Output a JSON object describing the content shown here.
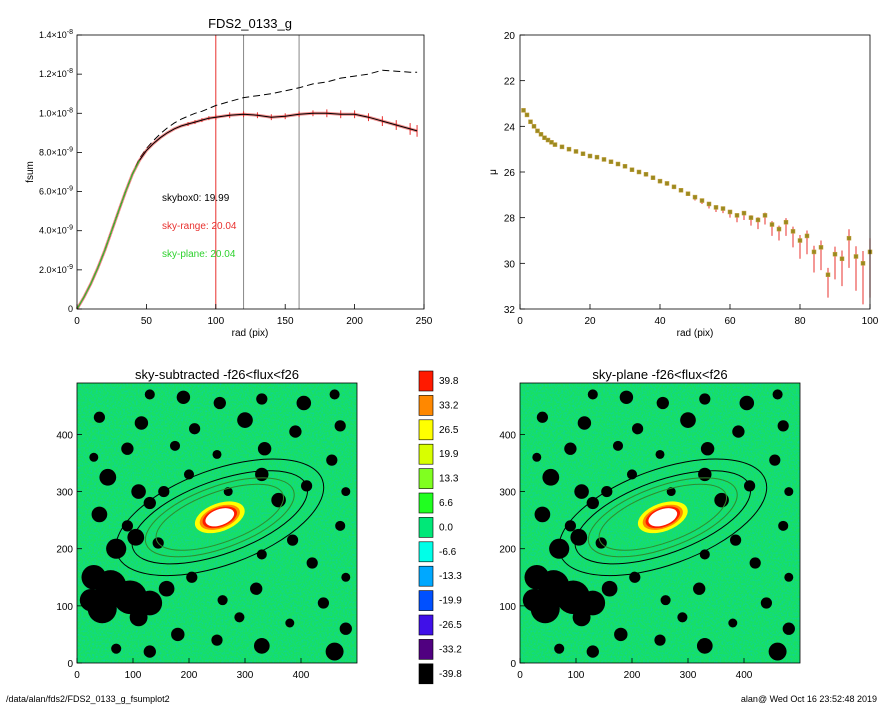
{
  "chart_data": [
    {
      "type": "line",
      "title": "FDS2_0133_g",
      "xlabel": "rad (pix)",
      "ylabel": "fsum",
      "xlim": [
        0,
        250
      ],
      "ylim": [
        0,
        1.4e-08
      ],
      "x_ticks": [
        "0",
        "50",
        "100",
        "150",
        "200",
        "250"
      ],
      "y_ticks": [
        {
          "mantissa": "0",
          "exp": ""
        },
        {
          "mantissa": "2.0×10",
          "exp": "-9"
        },
        {
          "mantissa": "4.0×10",
          "exp": "-9"
        },
        {
          "mantissa": "6.0×10",
          "exp": "-9"
        },
        {
          "mantissa": "8.0×10",
          "exp": "-9"
        },
        {
          "mantissa": "1.0×10",
          "exp": "-8"
        },
        {
          "mantissa": "1.2×10",
          "exp": "-8"
        },
        {
          "mantissa": "1.4×10",
          "exp": "-8"
        }
      ],
      "vertical_lines": [
        {
          "x": 100,
          "color": "#e8302e"
        },
        {
          "x": 120,
          "color": "#888888"
        },
        {
          "x": 160,
          "color": "#888888"
        }
      ],
      "annotations": [
        {
          "text": "skybox0: 19.99",
          "color": "#000000"
        },
        {
          "text": "sky-range: 20.04",
          "color": "#e8302e"
        },
        {
          "text": "sky-plane: 20.04",
          "color": "#2ed12e"
        }
      ],
      "series": [
        {
          "style": "dashed",
          "color": "#000000",
          "x": [
            0,
            5,
            10,
            15,
            20,
            25,
            30,
            35,
            40,
            45,
            50,
            55,
            60,
            65,
            70,
            75,
            80,
            85,
            90,
            95,
            100,
            110,
            120,
            130,
            140,
            150,
            160,
            170,
            180,
            190,
            200,
            210,
            220,
            230,
            240,
            245
          ],
          "y": [
            0,
            6e-10,
            1.3e-09,
            2.1e-09,
            3e-09,
            4e-09,
            5e-09,
            6e-09,
            6.9e-09,
            7.7e-09,
            8.2e-09,
            8.6e-09,
            8.95e-09,
            9.25e-09,
            9.5e-09,
            9.7e-09,
            9.85e-09,
            1e-08,
            1.01e-08,
            1.025e-08,
            1.04e-08,
            1.06e-08,
            1.08e-08,
            1.09e-08,
            1.1e-08,
            1.115e-08,
            1.13e-08,
            1.15e-08,
            1.16e-08,
            1.18e-08,
            1.19e-08,
            1.2e-08,
            1.22e-08,
            1.215e-08,
            1.21e-08,
            1.21e-08
          ]
        },
        {
          "style": "errorbars",
          "color": "#e8302e",
          "x": [
            0,
            5,
            10,
            15,
            20,
            25,
            30,
            35,
            40,
            45,
            50,
            55,
            60,
            65,
            70,
            75,
            80,
            85,
            90,
            95,
            100,
            110,
            120,
            130,
            140,
            150,
            160,
            170,
            180,
            190,
            200,
            210,
            220,
            230,
            240,
            245
          ],
          "y": [
            0,
            6e-10,
            1.3e-09,
            2.1e-09,
            3e-09,
            4e-09,
            5e-09,
            6e-09,
            6.9e-09,
            7.6e-09,
            8.1e-09,
            8.45e-09,
            8.75e-09,
            9e-09,
            9.2e-09,
            9.35e-09,
            9.45e-09,
            9.55e-09,
            9.65e-09,
            9.75e-09,
            9.8e-09,
            9.9e-09,
            9.95e-09,
            9.9e-09,
            9.8e-09,
            9.85e-09,
            9.95e-09,
            1e-08,
            1e-08,
            9.95e-09,
            9.95e-09,
            9.8e-09,
            9.6e-09,
            9.4e-09,
            9.2e-09,
            9.1e-09
          ],
          "err": [
            0,
            0,
            0,
            0,
            0,
            0,
            0,
            0,
            0,
            0,
            0,
            0,
            0,
            0,
            0,
            0,
            1e-10,
            1e-10,
            1e-10,
            1e-10,
            1.5e-10,
            1.5e-10,
            1.5e-10,
            1.5e-10,
            1.5e-10,
            1.5e-10,
            1.5e-10,
            1.5e-10,
            2e-10,
            2e-10,
            2e-10,
            2e-10,
            2.5e-10,
            2.5e-10,
            3e-10,
            3e-10
          ]
        },
        {
          "style": "solid",
          "color": "#000000",
          "x": [
            0,
            5,
            10,
            15,
            20,
            25,
            30,
            35,
            40,
            45,
            50,
            55,
            60,
            65,
            70,
            75,
            80,
            85,
            90,
            95,
            100,
            110,
            120,
            130,
            140,
            150,
            160,
            170,
            180,
            190,
            200,
            210,
            220,
            230,
            240,
            245
          ],
          "y": [
            0,
            6e-10,
            1.3e-09,
            2.1e-09,
            3e-09,
            4e-09,
            5e-09,
            6e-09,
            6.9e-09,
            7.6e-09,
            8.1e-09,
            8.45e-09,
            8.75e-09,
            9e-09,
            9.2e-09,
            9.35e-09,
            9.45e-09,
            9.55e-09,
            9.65e-09,
            9.75e-09,
            9.8e-09,
            9.9e-09,
            9.95e-09,
            9.9e-09,
            9.8e-09,
            9.85e-09,
            9.95e-09,
            1e-08,
            1e-08,
            9.95e-09,
            9.95e-09,
            9.8e-09,
            9.6e-09,
            9.4e-09,
            9.2e-09,
            9.1e-09
          ]
        },
        {
          "style": "solid",
          "color": "#2ed12e",
          "x": [
            0,
            5,
            10,
            15,
            20,
            25,
            30,
            35,
            40,
            45
          ],
          "y": [
            0,
            6e-10,
            1.3e-09,
            2.1e-09,
            3e-09,
            4e-09,
            5e-09,
            6e-09,
            6.9e-09,
            7.6e-09
          ]
        }
      ]
    },
    {
      "type": "scatter",
      "title": "",
      "xlabel": "rad (pix)",
      "ylabel": "μ",
      "xlim": [
        0,
        100
      ],
      "ylim": [
        32,
        20
      ],
      "y_inverted": true,
      "x_ticks": [
        "0",
        "20",
        "40",
        "60",
        "80",
        "100"
      ],
      "y_ticks": [
        "20",
        "22",
        "24",
        "26",
        "28",
        "30",
        "32"
      ],
      "series": [
        {
          "marker": "square",
          "color": "#c8a040",
          "x": [
            1,
            2,
            3,
            4,
            5,
            6,
            7,
            8,
            9,
            10,
            12,
            14,
            16,
            18,
            20,
            22,
            24,
            26,
            28,
            30,
            32,
            34,
            36,
            38,
            40,
            42,
            44,
            46,
            48,
            50,
            52,
            54,
            56,
            58,
            60,
            62,
            64,
            66,
            68,
            70,
            72,
            74,
            76,
            78,
            80,
            82,
            84,
            86,
            88,
            90,
            92,
            94,
            96,
            98,
            100
          ],
          "y": [
            23.3,
            23.5,
            23.8,
            24.0,
            24.2,
            24.35,
            24.5,
            24.6,
            24.7,
            24.8,
            24.9,
            25.0,
            25.1,
            25.2,
            25.3,
            25.35,
            25.45,
            25.55,
            25.65,
            25.75,
            25.9,
            26.0,
            26.1,
            26.25,
            26.4,
            26.5,
            26.65,
            26.8,
            26.95,
            27.1,
            27.25,
            27.4,
            27.55,
            27.6,
            27.75,
            27.9,
            27.8,
            28.0,
            28.1,
            27.9,
            28.3,
            28.5,
            28.2,
            28.6,
            29.0,
            28.8,
            29.5,
            29.3,
            30.5,
            29.6,
            29.8,
            28.9,
            29.7,
            30.0,
            29.5
          ],
          "err": [
            0.05,
            0.05,
            0.05,
            0.05,
            0.05,
            0.05,
            0.05,
            0.05,
            0.05,
            0.05,
            0.05,
            0.05,
            0.05,
            0.05,
            0.05,
            0.05,
            0.05,
            0.05,
            0.05,
            0.05,
            0.05,
            0.05,
            0.1,
            0.1,
            0.1,
            0.1,
            0.1,
            0.1,
            0.1,
            0.15,
            0.15,
            0.2,
            0.2,
            0.2,
            0.25,
            0.3,
            0.3,
            0.35,
            0.4,
            0.4,
            0.5,
            0.5,
            0.6,
            0.7,
            0.8,
            0.8,
            0.9,
            1.0,
            1.0,
            1.1,
            1.2,
            1.3,
            1.5,
            1.8,
            2.0
          ]
        }
      ]
    },
    {
      "type": "heatmap",
      "title": "sky-subtracted -f26<flux<f26",
      "xlim": [
        0,
        500
      ],
      "ylim": [
        0,
        490
      ],
      "x_ticks": [
        "0",
        "100",
        "200",
        "300",
        "400"
      ],
      "y_ticks": [
        "0",
        "100",
        "200",
        "300",
        "400"
      ],
      "galaxy_center": [
        255,
        255
      ],
      "ellipses": [
        {
          "a": 195,
          "b": 85,
          "angle_deg": -20,
          "color": "#000000"
        },
        {
          "a": 165,
          "b": 65,
          "angle_deg": -20,
          "color": "#000000"
        },
        {
          "a": 140,
          "b": 55,
          "angle_deg": -20,
          "color": "#2e8a2e"
        },
        {
          "a": 120,
          "b": 45,
          "angle_deg": -20,
          "color": "#2e8a2e"
        }
      ]
    },
    {
      "type": "heatmap",
      "title": "sky-plane -f26<flux<f26",
      "xlim": [
        0,
        500
      ],
      "ylim": [
        0,
        490
      ],
      "x_ticks": [
        "0",
        "100",
        "200",
        "300",
        "400"
      ],
      "y_ticks": [
        "0",
        "100",
        "200",
        "300",
        "400"
      ],
      "galaxy_center": [
        255,
        255
      ],
      "ellipses": [
        {
          "a": 195,
          "b": 85,
          "angle_deg": -20,
          "color": "#000000"
        },
        {
          "a": 165,
          "b": 65,
          "angle_deg": -20,
          "color": "#000000"
        },
        {
          "a": 140,
          "b": 55,
          "angle_deg": -20,
          "color": "#2e8a2e"
        },
        {
          "a": 120,
          "b": 45,
          "angle_deg": -20,
          "color": "#2e8a2e"
        }
      ]
    }
  ],
  "colorbar": {
    "labels": [
      "39.8",
      "33.2",
      "26.5",
      "19.9",
      "13.3",
      "6.6",
      "0.0",
      "-6.6",
      "-13.3",
      "-19.9",
      "-26.5",
      "-33.2",
      "-39.8"
    ],
    "colors": [
      "#ff1a00",
      "#ff8800",
      "#ffff00",
      "#d8ff00",
      "#80ff20",
      "#20ff20",
      "#00e878",
      "#00ffe8",
      "#00a8ff",
      "#0050ff",
      "#4010e8",
      "#500080",
      "#000000"
    ]
  },
  "footer": {
    "left": "/data/alan/fds2/FDS2_0133_g_fsumplot2",
    "right": "alan@  Wed Oct 16 23:52:48 2019"
  }
}
